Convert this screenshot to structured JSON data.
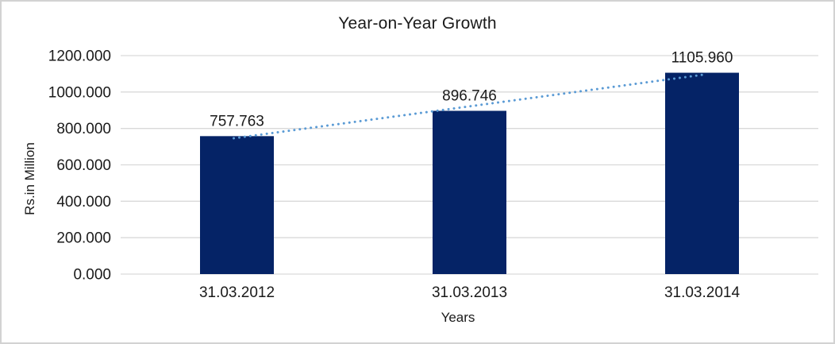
{
  "chart_data": {
    "type": "bar",
    "title": "Year-on-Year Growth",
    "xlabel": "Years",
    "ylabel": "Rs.in Million",
    "categories": [
      "31.03.2012",
      "31.03.2013",
      "31.03.2014"
    ],
    "values": [
      757.763,
      896.746,
      1105.96
    ],
    "data_labels": [
      "757.763",
      "896.746",
      "1105.960"
    ],
    "y_tick_labels": [
      "0.000",
      "200.000",
      "400.000",
      "600.000",
      "800.000",
      "1000.000",
      "1200.000"
    ],
    "ylim": [
      0,
      1200
    ],
    "grid": true,
    "legend_position": "none",
    "trendline": {
      "type": "linear",
      "style": "dotted"
    },
    "colors": {
      "bar": "#052366",
      "trendline": "#5B9BD5",
      "gridline": "#D9D9D9",
      "text": "#1a1a1a",
      "frame_border": "#D2D2D2",
      "background": "#FFFFFF"
    }
  }
}
